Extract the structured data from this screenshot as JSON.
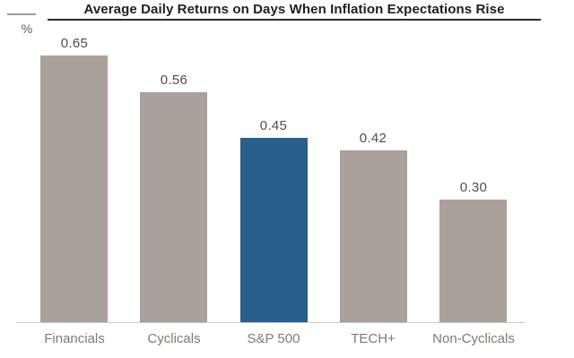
{
  "header": {
    "title": "Average Daily Returns on Days When Inflation Expectations Rise",
    "unit_label": "%"
  },
  "chart_data": {
    "type": "bar",
    "title": "Average Daily Returns on Days When Inflation Expectations Rise",
    "xlabel": "",
    "ylabel": "%",
    "categories": [
      "Financials",
      "Cyclicals",
      "S&P 500",
      "TECH+",
      "Non-Cyclicals"
    ],
    "values": [
      0.65,
      0.56,
      0.45,
      0.42,
      0.3
    ],
    "value_labels": [
      "0.65",
      "0.56",
      "0.45",
      "0.42",
      "0.30"
    ],
    "highlight_index": 2,
    "bar_color": "#a9a19a",
    "highlight_color": "#295f8c",
    "value_label_color": "#4d4d4d",
    "category_label_color": "#7f7a75",
    "axis_line_color": "#c9c9c9",
    "title_color": "#1f1f1f",
    "ylim": [
      0,
      0.7
    ],
    "grid": false,
    "legend": false,
    "value_labels_position": "above-bars"
  }
}
